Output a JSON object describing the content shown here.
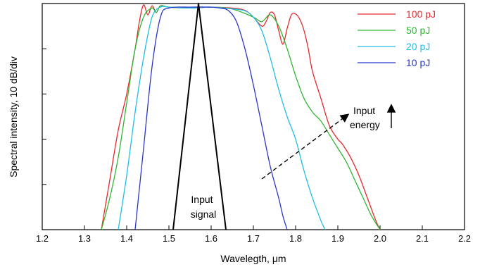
{
  "chart_data": {
    "type": "line",
    "title": "",
    "xlabel": "Wavelegth, μm",
    "ylabel": "Spectral intensity, 10 dB/div",
    "xlim": [
      1.2,
      2.2
    ],
    "ylim": [
      -50,
      0
    ],
    "xticks": [
      "1.2",
      "1.3",
      "1.4",
      "1.5",
      "1.6",
      "1.7",
      "1.8",
      "1.9",
      "2.0",
      "2.1",
      "2.2"
    ],
    "y_tick_values": [
      -40,
      -30,
      -20,
      -10
    ],
    "grid": false,
    "legend_position": "top-right",
    "series": [
      {
        "name": "100 pJ",
        "color": "#e8282d",
        "x": [
          1.34,
          1.36,
          1.38,
          1.4,
          1.42,
          1.43,
          1.44,
          1.45,
          1.46,
          1.47,
          1.48,
          1.5,
          1.55,
          1.6,
          1.65,
          1.68,
          1.7,
          1.72,
          1.73,
          1.74,
          1.75,
          1.76,
          1.77,
          1.78,
          1.79,
          1.8,
          1.81,
          1.82,
          1.83,
          1.84,
          1.86,
          1.88,
          1.9,
          1.91,
          1.93,
          1.95,
          1.97,
          1.99,
          2.0
        ],
        "y": [
          -50,
          -39,
          -28,
          -20,
          -10,
          -4,
          -0.3,
          -2.5,
          -0.5,
          -2,
          -0.5,
          -0.8,
          -1,
          -0.8,
          -1,
          -1.5,
          -3,
          -5,
          -4,
          -2,
          -2.5,
          -6,
          -9,
          -5.5,
          -2.5,
          -2.3,
          -3.5,
          -6,
          -10,
          -15,
          -21,
          -27,
          -30,
          -31,
          -34,
          -38,
          -43,
          -48,
          -50
        ]
      },
      {
        "name": "50 pJ",
        "color": "#30b532",
        "x": [
          1.34,
          1.36,
          1.38,
          1.4,
          1.42,
          1.44,
          1.46,
          1.47,
          1.48,
          1.5,
          1.55,
          1.6,
          1.65,
          1.7,
          1.72,
          1.74,
          1.76,
          1.78,
          1.8,
          1.82,
          1.84,
          1.86,
          1.88,
          1.9,
          1.92,
          1.94,
          1.96,
          1.98,
          2.0
        ],
        "y": [
          -50,
          -43,
          -34,
          -22,
          -10,
          -3,
          -1,
          -2,
          -0.5,
          -0.8,
          -1,
          -0.8,
          -1.2,
          -3,
          -4,
          -2.5,
          -5,
          -10,
          -16,
          -21,
          -24,
          -26,
          -29,
          -32,
          -35,
          -39,
          -43,
          -47,
          -50
        ]
      },
      {
        "name": "20 pJ",
        "color": "#20bde6",
        "x": [
          1.38,
          1.4,
          1.42,
          1.44,
          1.46,
          1.48,
          1.5,
          1.55,
          1.6,
          1.65,
          1.68,
          1.7,
          1.72,
          1.74,
          1.76,
          1.78,
          1.8,
          1.82,
          1.84,
          1.86,
          1.87
        ],
        "y": [
          -50,
          -38,
          -24,
          -12,
          -3,
          -0.8,
          -0.8,
          -1,
          -0.8,
          -1.2,
          -1.6,
          -3,
          -6,
          -12,
          -19,
          -25,
          -30,
          -37,
          -43,
          -48,
          -50
        ]
      },
      {
        "name": "10 pJ",
        "color": "#2a35c9",
        "x": [
          1.42,
          1.44,
          1.46,
          1.48,
          1.5,
          1.55,
          1.6,
          1.62,
          1.64,
          1.66,
          1.68,
          1.7,
          1.72,
          1.74,
          1.76,
          1.77,
          1.78
        ],
        "y": [
          -50,
          -32,
          -14,
          -3,
          -1,
          -0.8,
          -0.8,
          -1,
          -1.5,
          -4,
          -10,
          -18,
          -27,
          -36,
          -43,
          -47,
          -50
        ]
      },
      {
        "name": "Input signal",
        "color": "#000000",
        "x": [
          1.51,
          1.57,
          1.635
        ],
        "y": [
          -50,
          0,
          -50
        ]
      }
    ],
    "annotations": {
      "input_signal": [
        "Input",
        "signal"
      ],
      "input_energy": [
        "Input",
        "energy"
      ]
    }
  }
}
